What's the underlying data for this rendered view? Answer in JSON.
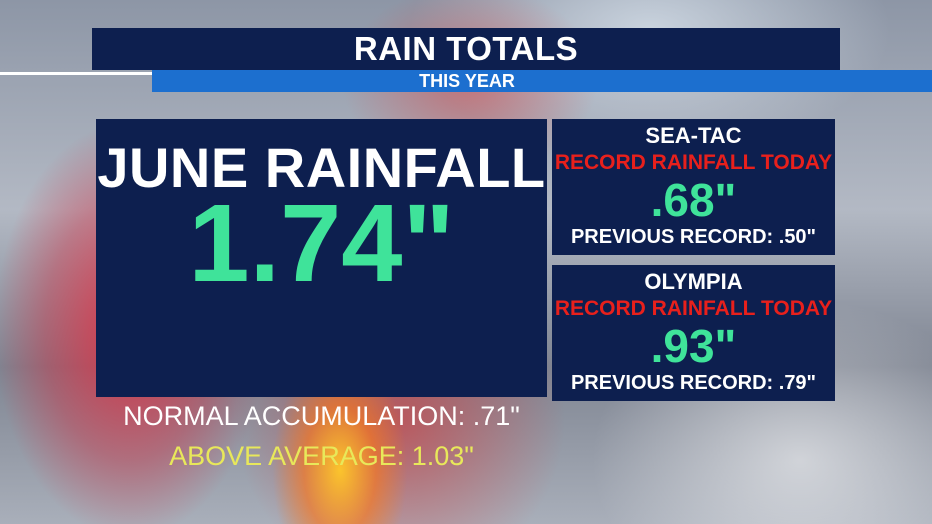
{
  "header": {
    "title": "RAIN TOTALS",
    "subtitle": "THIS YEAR"
  },
  "june": {
    "heading": "JUNE RAINFALL",
    "value": "1.74\"",
    "normal": "NORMAL ACCUMULATION: .71\"",
    "above": "ABOVE AVERAGE: 1.03\""
  },
  "stations": [
    {
      "name": "SEA-TAC",
      "record_label": "RECORD RAINFALL TODAY",
      "value": ".68\"",
      "previous": "PREVIOUS RECORD: .50\""
    },
    {
      "name": "OLYMPIA",
      "record_label": "RECORD RAINFALL TODAY",
      "value": ".93\"",
      "previous": "PREVIOUS RECORD: .79\""
    }
  ],
  "colors": {
    "panel": "#0d1f4f",
    "accent_blue": "#1c6fcf",
    "value_green": "#3fe39a",
    "record_red": "#e8201c",
    "above_yellow": "#e8e85a",
    "text_white": "#ffffff"
  }
}
